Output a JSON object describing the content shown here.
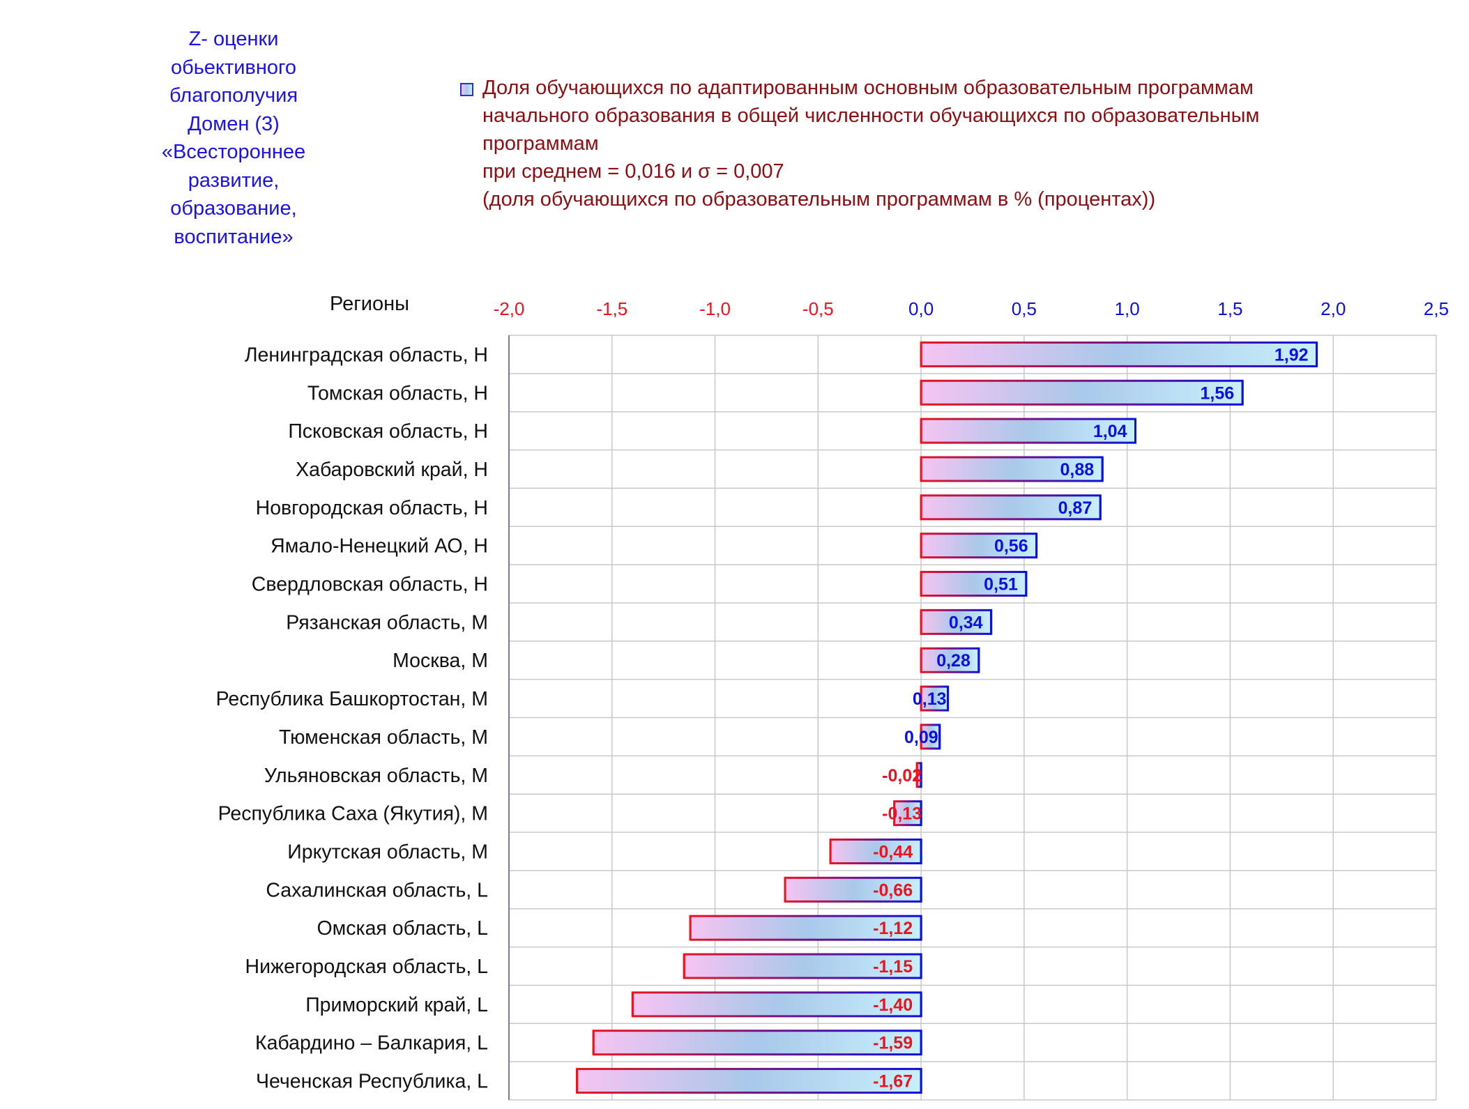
{
  "side_caption": {
    "lines": [
      "Z- оценки",
      "обьективного",
      "благополучия",
      "Домен (3)",
      "«Всестороннее",
      "развитие,",
      "образование,",
      "воспитание»"
    ]
  },
  "legend": {
    "lines": [
      "Доля обучающихся по адаптированным основным образовательным программам",
      "начального образования в общей численности обучающихся по образовательным",
      "программам",
      "при среднем = 0,016  и σ = 0,007",
      "(доля обучающихся по образовательным программам в % (процентах))"
    ]
  },
  "colors": {
    "positive": "#0a10e0",
    "negative": "#e81520",
    "caption": "#1a12e6",
    "legend": "#8b0f12",
    "grid": "#c8c8cc",
    "bar_pink": "#f6c4f2",
    "bar_mid": "#a9c8ea",
    "bar_cyan": "#c8f0fb"
  },
  "chart_data": {
    "type": "bar",
    "orientation": "horizontal",
    "y_axis_title": "Регионы",
    "xlim": [
      -2.0,
      2.5
    ],
    "x_ticks": [
      "-2,0",
      "-1,5",
      "-1,0",
      "-0,5",
      "0,0",
      "0,5",
      "1,0",
      "1,5",
      "2,0",
      "2,5"
    ],
    "x_tick_values": [
      -2.0,
      -1.5,
      -1.0,
      -0.5,
      0.0,
      0.5,
      1.0,
      1.5,
      2.0,
      2.5
    ],
    "x_axis_position": "top",
    "grid": true,
    "categories": [
      "Ленинградская область,  Н",
      "Томская область,  Н",
      "Псковская область,  Н",
      "Хабаровский край,  Н",
      "Новгородская область,  Н",
      "Ямало-Ненецкий АО,  Н",
      "Свердловская область,  Н",
      "Рязанская область,  М",
      "Москва,  М",
      "Республика Башкортостан,  М",
      "Тюменская область,  М",
      "Ульяновская область,  М",
      "Республика Саха (Якутия),  М",
      "Иркутская область,  М",
      "Сахалинская область,  L",
      "Омская область,  L",
      "Нижегородская область,  L",
      "Приморский край,  L",
      "Кабардино – Балкария,  L",
      "Чеченская Республика,  L"
    ],
    "values": [
      1.92,
      1.56,
      1.04,
      0.88,
      0.87,
      0.56,
      0.51,
      0.34,
      0.28,
      0.13,
      0.09,
      -0.02,
      -0.13,
      -0.44,
      -0.66,
      -1.12,
      -1.15,
      -1.4,
      -1.59,
      -1.67
    ],
    "value_labels": [
      "1,92",
      "1,56",
      "1,04",
      "0,88",
      "0,87",
      "0,56",
      "0,51",
      "0,34",
      "0,28",
      "0,13",
      "0,09",
      "-0,02",
      "-0,13",
      "-0,44",
      "-0,66",
      "-1,12",
      "-1,15",
      "-1,40",
      "-1,59",
      "-1,67"
    ]
  }
}
